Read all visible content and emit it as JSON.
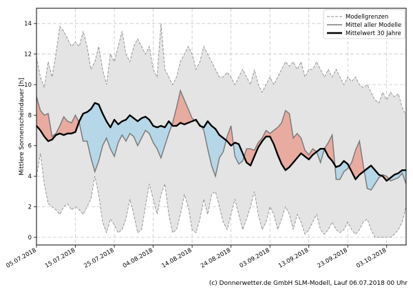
{
  "chart_data": {
    "type": "line",
    "ylabel": "Mittlere Sonnenscheindauer [h]",
    "ylim": [
      -0.5,
      15
    ],
    "yticks": [
      0,
      2,
      4,
      6,
      8,
      10,
      12,
      14
    ],
    "xlim": [
      0,
      95
    ],
    "xticks": [
      {
        "day": 0,
        "label": "05.07.2018"
      },
      {
        "day": 10,
        "label": "15.07.2018"
      },
      {
        "day": 20,
        "label": "25.07.2018"
      },
      {
        "day": 30,
        "label": "04.08.2018"
      },
      {
        "day": 40,
        "label": "14.08.2018"
      },
      {
        "day": 50,
        "label": "24.08.2018"
      },
      {
        "day": 60,
        "label": "03.09.2018"
      },
      {
        "day": 70,
        "label": "13.09.2018"
      },
      {
        "day": 80,
        "label": "23.09.2018"
      },
      {
        "day": 90,
        "label": "03.10.2018"
      }
    ],
    "grid": true,
    "legend_position": "top-right",
    "legend": [
      {
        "key": "bounds",
        "label": "Modellgrenzen"
      },
      {
        "key": "mean",
        "label": "Mittel aller Modelle"
      },
      {
        "key": "clim",
        "label": "Mittelwert 30 Jahre"
      }
    ],
    "colors": {
      "envelope_fill": "#e4e4e4",
      "envelope_line": "#8c8c8c",
      "mean_line": "#7a7a7a",
      "clim_line": "#000000",
      "above_fill": "#e9aba0",
      "below_fill": "#b6d7e8",
      "grid": "#c8c8c8"
    },
    "series": [
      {
        "name": "Modellgrenzen (oben)",
        "values": [
          11.8,
          10.5,
          9.8,
          11.5,
          10.5,
          12.0,
          13.8,
          13.5,
          13.0,
          12.5,
          12.8,
          12.5,
          13.5,
          12.5,
          11.0,
          11.5,
          12.5,
          11.0,
          10.0,
          12.0,
          11.5,
          12.5,
          13.5,
          12.0,
          11.5,
          12.5,
          13.0,
          12.5,
          12.0,
          12.5,
          11.0,
          10.5,
          14.0,
          11.0,
          10.5,
          10.0,
          10.5,
          11.5,
          12.0,
          12.5,
          12.0,
          11.0,
          11.5,
          12.5,
          12.0,
          11.5,
          11.0,
          10.5,
          10.5,
          10.8,
          10.5,
          10.0,
          10.5,
          11.0,
          10.5,
          10.0,
          11.0,
          10.0,
          9.5,
          10.0,
          10.5,
          10.0,
          10.5,
          11.0,
          11.5,
          11.2,
          11.5,
          11.0,
          11.5,
          10.5,
          11.0,
          11.0,
          11.5,
          11.0,
          10.5,
          11.0,
          10.5,
          11.0,
          10.5,
          10.0,
          10.5,
          10.2,
          10.5,
          10.0,
          9.8,
          10.0,
          9.5,
          9.0,
          8.8,
          9.5,
          9.0,
          9.5,
          9.2,
          9.4,
          8.5,
          8.0
        ]
      },
      {
        "name": "Modellgrenzen (unten)",
        "values": [
          4.0,
          5.5,
          3.5,
          2.2,
          2.0,
          1.8,
          1.5,
          2.0,
          2.2,
          1.8,
          2.0,
          1.8,
          1.5,
          2.0,
          2.5,
          4.0,
          2.8,
          1.0,
          0.3,
          1.2,
          0.8,
          0.3,
          0.5,
          1.2,
          2.5,
          1.5,
          0.3,
          0.5,
          2.0,
          3.5,
          2.5,
          1.5,
          2.8,
          3.5,
          1.5,
          0.3,
          0.5,
          1.5,
          2.8,
          2.0,
          0.5,
          0.3,
          1.2,
          2.5,
          1.5,
          2.8,
          3.0,
          2.0,
          1.0,
          0.5,
          1.5,
          2.5,
          1.5,
          0.5,
          1.2,
          2.0,
          3.0,
          1.5,
          0.5,
          1.0,
          2.0,
          1.5,
          0.5,
          1.2,
          2.0,
          1.5,
          0.5,
          1.5,
          1.0,
          0.2,
          0.5,
          1.0,
          1.5,
          0.5,
          0.2,
          0.5,
          1.0,
          0.5,
          0.3,
          0.5,
          1.0,
          0.5,
          0.2,
          0.5,
          1.0,
          1.2,
          0.5,
          0.0,
          0.0,
          0.0,
          0.0,
          0.0,
          0.2,
          0.5,
          1.0,
          2.0
        ]
      },
      {
        "name": "Mittel aller Modelle",
        "values": [
          9.2,
          8.3,
          8.0,
          8.1,
          6.6,
          6.8,
          7.3,
          7.9,
          7.6,
          7.5,
          8.0,
          7.5,
          6.3,
          6.3,
          5.2,
          4.3,
          5.0,
          6.0,
          6.5,
          5.8,
          5.3,
          6.2,
          6.7,
          6.3,
          6.8,
          6.6,
          6.0,
          6.5,
          7.0,
          6.8,
          6.2,
          5.8,
          5.2,
          6.0,
          6.8,
          7.5,
          8.5,
          9.6,
          9.0,
          8.4,
          7.8,
          7.6,
          7.4,
          7.0,
          5.8,
          4.7,
          4.0,
          5.2,
          5.6,
          6.6,
          7.3,
          5.3,
          4.8,
          5.0,
          5.8,
          5.8,
          5.7,
          6.2,
          6.5,
          7.0,
          6.8,
          7.0,
          7.2,
          7.5,
          8.3,
          8.1,
          6.5,
          6.8,
          6.5,
          5.7,
          5.4,
          5.8,
          5.6,
          4.9,
          5.8,
          6.2,
          6.7,
          3.8,
          3.8,
          4.3,
          4.5,
          4.9,
          5.7,
          6.3,
          4.7,
          3.2,
          3.1,
          3.5,
          3.9,
          4.1,
          4.0,
          3.7,
          3.8,
          3.9,
          4.2,
          3.5
        ]
      },
      {
        "name": "Mittelwert 30 Jahre",
        "values": [
          7.3,
          7.0,
          6.6,
          6.3,
          6.4,
          6.7,
          6.8,
          6.7,
          6.8,
          6.8,
          6.9,
          7.6,
          8.1,
          8.2,
          8.4,
          8.8,
          8.7,
          8.1,
          7.6,
          7.2,
          7.7,
          7.4,
          7.6,
          7.7,
          8.0,
          7.8,
          7.6,
          7.8,
          7.9,
          7.7,
          7.3,
          7.2,
          7.3,
          7.2,
          7.6,
          7.3,
          7.3,
          7.5,
          7.4,
          7.5,
          7.6,
          7.7,
          7.3,
          7.2,
          7.6,
          7.3,
          7.1,
          6.7,
          6.5,
          6.3,
          6.0,
          6.2,
          6.1,
          5.5,
          4.9,
          4.7,
          5.3,
          5.9,
          6.3,
          6.6,
          6.6,
          6.1,
          5.4,
          4.8,
          4.4,
          4.6,
          4.9,
          5.2,
          5.5,
          5.3,
          5.1,
          5.4,
          5.6,
          5.8,
          5.8,
          5.3,
          5.0,
          4.6,
          4.7,
          5.0,
          4.8,
          4.3,
          3.8,
          4.1,
          4.3,
          4.5,
          4.7,
          4.4,
          4.1,
          4.0,
          3.7,
          3.9,
          4.1,
          4.2,
          4.4,
          4.4
        ]
      }
    ]
  },
  "credit": "(c) Donnerwetter.de GmbH SLM-Modell, Lauf 06.07.2018 00 Uhr"
}
